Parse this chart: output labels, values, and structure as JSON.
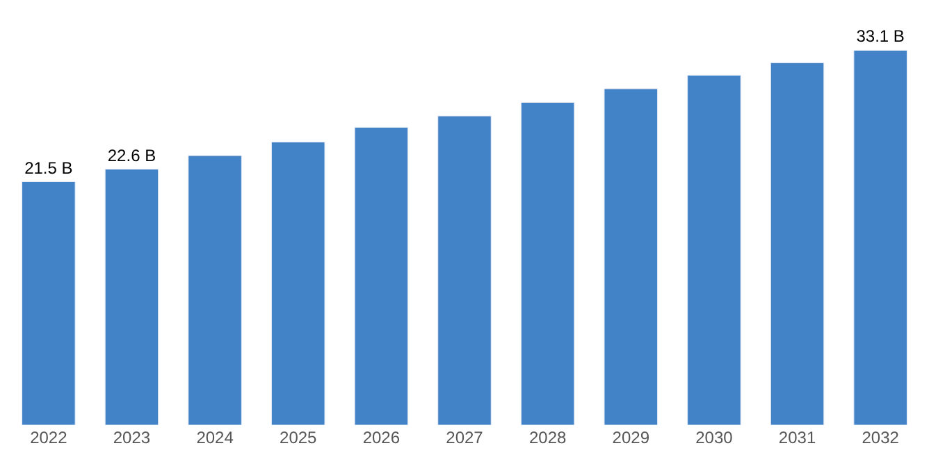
{
  "chart_data": {
    "type": "bar",
    "categories": [
      "2022",
      "2023",
      "2024",
      "2025",
      "2026",
      "2027",
      "2028",
      "2029",
      "2030",
      "2031",
      "2032"
    ],
    "values": [
      21.5,
      22.6,
      23.8,
      25.0,
      26.3,
      27.3,
      28.5,
      29.7,
      30.9,
      32.0,
      33.1
    ],
    "value_labels": [
      "21.5 B",
      "22.6 B",
      null,
      null,
      null,
      null,
      null,
      null,
      null,
      null,
      "33.1 B"
    ],
    "color": "#4282c6"
  }
}
